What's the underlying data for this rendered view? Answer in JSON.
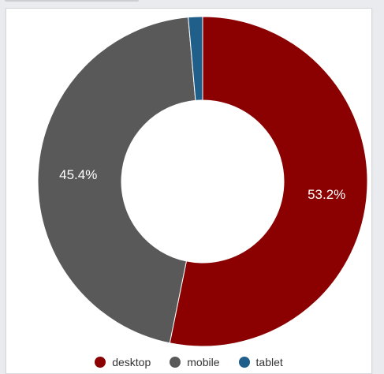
{
  "chart_data": {
    "type": "pie",
    "donut": true,
    "title": "",
    "categories": [
      "desktop",
      "mobile",
      "tablet"
    ],
    "values": [
      53.2,
      45.4,
      1.4
    ],
    "data_labels": [
      "53.2%",
      "45.4%",
      ""
    ],
    "colors": [
      "#8b0000",
      "#595959",
      "#1f5f8a"
    ],
    "legend_position": "bottom-center",
    "start_angle_deg": 0,
    "direction": "clockwise"
  },
  "legend": {
    "items": [
      {
        "label": "desktop",
        "color": "#8b0000"
      },
      {
        "label": "mobile",
        "color": "#595959"
      },
      {
        "label": "tablet",
        "color": "#1f5f8a"
      }
    ]
  }
}
